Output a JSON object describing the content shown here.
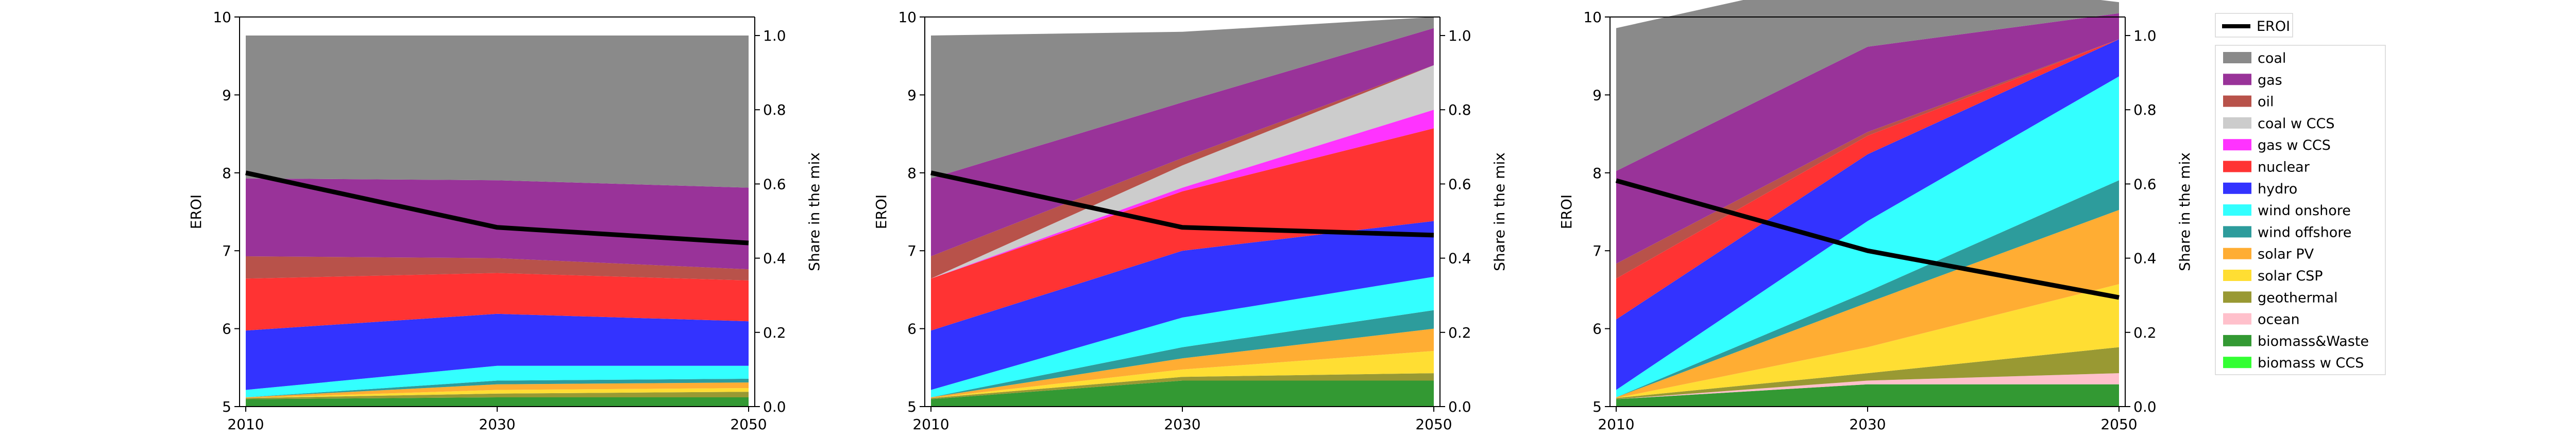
{
  "colors": {
    "coal": "#8a8a8a",
    "gas": "#993399",
    "oil": "#b8524a",
    "coal w CCS": "#cccccc",
    "gas w CCS": "#ff33ff",
    "nuclear": "#ff3333",
    "hydro": "#3333ff",
    "wind onshore": "#33ffff",
    "wind offshore": "#2d9c9c",
    "solar PV": "#ffad33",
    "solar CSP": "#ffde33",
    "geothermal": "#999933",
    "ocean": "#ffc0cb",
    "biomass&Waste": "#339933",
    "biomass w CCS": "#33ff33",
    "EROI": "#000000"
  },
  "legend": {
    "line_label": "EROI",
    "items": [
      "coal",
      "gas",
      "oil",
      "coal w CCS",
      "gas w CCS",
      "nuclear",
      "hydro",
      "wind onshore",
      "wind offshore",
      "solar PV",
      "solar CSP",
      "geothermal",
      "ocean",
      "biomass&Waste",
      "biomass w CCS"
    ]
  },
  "chart_data": [
    {
      "type": "area",
      "x": [
        2010,
        2030,
        2050
      ],
      "xlabel": "",
      "ylabel": "EROI",
      "ylabel_right": "Share in the mix",
      "ylim": [
        5,
        10
      ],
      "ylim_right": [
        0,
        1.05
      ],
      "yticks": [
        "5",
        "6",
        "7",
        "8",
        "9",
        "10"
      ],
      "yticks_right": [
        "0.0",
        "0.2",
        "0.4",
        "0.6",
        "0.8",
        "1.0"
      ],
      "xticks": [
        "2010",
        "2030",
        "2050"
      ],
      "line": {
        "name": "EROI",
        "values": [
          8.0,
          7.3,
          7.1
        ]
      },
      "series": [
        {
          "name": "biomass w CCS",
          "values": [
            0.0,
            0.0,
            0.0
          ]
        },
        {
          "name": "biomass&Waste",
          "values": [
            0.02,
            0.025,
            0.025
          ]
        },
        {
          "name": "ocean",
          "values": [
            0.0,
            0.0,
            0.0
          ]
        },
        {
          "name": "geothermal",
          "values": [
            0.003,
            0.01,
            0.015
          ]
        },
        {
          "name": "solar CSP",
          "values": [
            0.0,
            0.01,
            0.01
          ]
        },
        {
          "name": "solar PV",
          "values": [
            0.002,
            0.015,
            0.015
          ]
        },
        {
          "name": "wind offshore",
          "values": [
            0.0,
            0.01,
            0.01
          ]
        },
        {
          "name": "wind onshore",
          "values": [
            0.02,
            0.04,
            0.035
          ]
        },
        {
          "name": "hydro",
          "values": [
            0.16,
            0.14,
            0.12
          ]
        },
        {
          "name": "nuclear",
          "values": [
            0.14,
            0.11,
            0.11
          ]
        },
        {
          "name": "gas w CCS",
          "values": [
            0.0,
            0.0,
            0.0
          ]
        },
        {
          "name": "coal w CCS",
          "values": [
            0.0,
            0.0,
            0.0
          ]
        },
        {
          "name": "oil",
          "values": [
            0.06,
            0.04,
            0.03
          ]
        },
        {
          "name": "gas",
          "values": [
            0.21,
            0.21,
            0.22
          ]
        },
        {
          "name": "coal",
          "values": [
            0.385,
            0.39,
            0.41
          ]
        }
      ]
    },
    {
      "type": "area",
      "x": [
        2010,
        2030,
        2050
      ],
      "xlabel": "",
      "ylabel": "EROI",
      "ylabel_right": "Share in the mix",
      "ylim": [
        5,
        10
      ],
      "ylim_right": [
        0,
        1.05
      ],
      "yticks": [
        "5",
        "6",
        "7",
        "8",
        "9",
        "10"
      ],
      "yticks_right": [
        "0.0",
        "0.2",
        "0.4",
        "0.6",
        "0.8",
        "1.0"
      ],
      "xticks": [
        "2010",
        "2030",
        "2050"
      ],
      "line": {
        "name": "EROI",
        "values": [
          8.0,
          7.3,
          7.2
        ]
      },
      "series": [
        {
          "name": "biomass w CCS",
          "values": [
            0.0,
            0.0,
            0.0
          ]
        },
        {
          "name": "biomass&Waste",
          "values": [
            0.02,
            0.07,
            0.07
          ]
        },
        {
          "name": "ocean",
          "values": [
            0.0,
            0.0,
            0.0
          ]
        },
        {
          "name": "geothermal",
          "values": [
            0.003,
            0.01,
            0.02
          ]
        },
        {
          "name": "solar CSP",
          "values": [
            0.0,
            0.02,
            0.06
          ]
        },
        {
          "name": "solar PV",
          "values": [
            0.002,
            0.03,
            0.06
          ]
        },
        {
          "name": "wind offshore",
          "values": [
            0.0,
            0.03,
            0.05
          ]
        },
        {
          "name": "wind onshore",
          "values": [
            0.02,
            0.08,
            0.09
          ]
        },
        {
          "name": "hydro",
          "values": [
            0.16,
            0.18,
            0.15
          ]
        },
        {
          "name": "nuclear",
          "values": [
            0.14,
            0.16,
            0.25
          ]
        },
        {
          "name": "gas w CCS",
          "values": [
            0.0,
            0.01,
            0.05
          ]
        },
        {
          "name": "coal w CCS",
          "values": [
            0.0,
            0.06,
            0.12
          ]
        },
        {
          "name": "oil",
          "values": [
            0.06,
            0.02,
            0.0
          ]
        },
        {
          "name": "gas",
          "values": [
            0.21,
            0.15,
            0.1
          ]
        },
        {
          "name": "coal",
          "values": [
            0.385,
            0.19,
            0.03
          ]
        }
      ]
    },
    {
      "type": "area",
      "x": [
        2010,
        2030,
        2050
      ],
      "xlabel": "",
      "ylabel": "EROI",
      "ylabel_right": "Share in the mix",
      "ylim": [
        5,
        10
      ],
      "ylim_right": [
        0,
        1.05
      ],
      "yticks": [
        "5",
        "6",
        "7",
        "8",
        "9",
        "10"
      ],
      "yticks_right": [
        "0.0",
        "0.2",
        "0.4",
        "0.6",
        "0.8",
        "1.0"
      ],
      "xticks": [
        "2010",
        "2030",
        "2050"
      ],
      "line": {
        "name": "EROI",
        "values": [
          7.9,
          7.0,
          6.4
        ]
      },
      "series": [
        {
          "name": "biomass w CCS",
          "values": [
            0.0,
            0.0,
            0.0
          ]
        },
        {
          "name": "biomass&Waste",
          "values": [
            0.02,
            0.06,
            0.06
          ]
        },
        {
          "name": "ocean",
          "values": [
            0.0,
            0.01,
            0.03
          ]
        },
        {
          "name": "geothermal",
          "values": [
            0.003,
            0.02,
            0.07
          ]
        },
        {
          "name": "solar CSP",
          "values": [
            0.0,
            0.07,
            0.17
          ]
        },
        {
          "name": "solar PV",
          "values": [
            0.002,
            0.12,
            0.2
          ]
        },
        {
          "name": "wind offshore",
          "values": [
            0.0,
            0.03,
            0.08
          ]
        },
        {
          "name": "wind onshore",
          "values": [
            0.02,
            0.19,
            0.28
          ]
        },
        {
          "name": "hydro",
          "values": [
            0.19,
            0.18,
            0.1
          ]
        },
        {
          "name": "nuclear",
          "values": [
            0.11,
            0.05,
            0.0
          ]
        },
        {
          "name": "gas w CCS",
          "values": [
            0.0,
            0.0,
            0.0
          ]
        },
        {
          "name": "coal w CCS",
          "values": [
            0.0,
            0.0,
            0.0
          ]
        },
        {
          "name": "oil",
          "values": [
            0.04,
            0.01,
            0.0
          ]
        },
        {
          "name": "gas",
          "values": [
            0.25,
            0.23,
            0.07
          ]
        },
        {
          "name": "coal",
          "values": [
            0.385,
            0.2,
            0.03
          ]
        }
      ]
    }
  ]
}
